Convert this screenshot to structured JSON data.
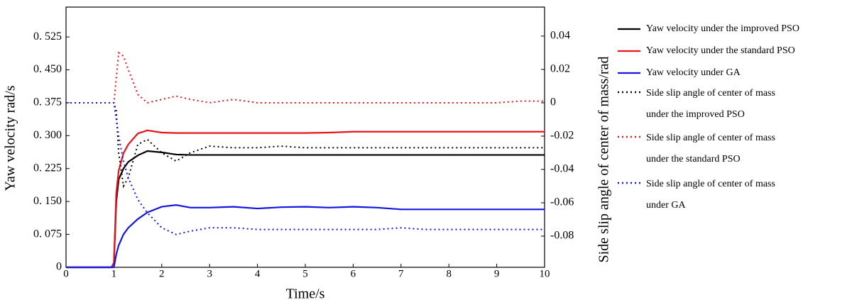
{
  "chart_data": {
    "type": "line",
    "xlabel": "Time/s",
    "ylabel": "Yaw velocity rad/s",
    "y2label": "Side slip angle of center of mass/rad",
    "x": [
      0,
      0.95,
      1.0,
      1.05,
      1.1,
      1.2,
      1.3,
      1.5,
      1.7,
      2,
      2.3,
      2.6,
      3,
      3.5,
      4,
      4.5,
      5,
      5.5,
      6,
      6.5,
      7,
      7.5,
      8,
      8.5,
      9,
      9.5,
      10
    ],
    "xlim": [
      0,
      10
    ],
    "xticks": [
      0,
      1,
      2,
      3,
      4,
      5,
      6,
      7,
      8,
      9,
      10
    ],
    "ylim": [
      0,
      0.593
    ],
    "yticks": [
      0,
      {
        "value": 0.075,
        "label": "0. 075"
      },
      {
        "value": 0.15,
        "label": "0. 150"
      },
      {
        "value": 0.225,
        "label": "0. 225"
      },
      {
        "value": 0.3,
        "label": "0. 300"
      },
      {
        "value": 0.375,
        "label": "0. 375"
      },
      {
        "value": 0.45,
        "label": "0. 450"
      },
      {
        "value": 0.525,
        "label": "0. 525"
      }
    ],
    "y2lim": [
      -0.0987,
      0.0574
    ],
    "y2ticks": [
      -0.08,
      -0.06,
      -0.04,
      -0.02,
      0,
      0.02,
      0.04
    ],
    "series": [
      {
        "name": "Yaw velocity under the improved PSO",
        "color": "#000000",
        "linestyle": "solid",
        "values": [
          0,
          0,
          0.01,
          0.15,
          0.2,
          0.225,
          0.24,
          0.255,
          0.265,
          0.262,
          0.257,
          0.256,
          0.256,
          0.256,
          0.256,
          0.256,
          0.256,
          0.256,
          0.256,
          0.256,
          0.256,
          0.256,
          0.256,
          0.256,
          0.256,
          0.256,
          0.256
        ]
      },
      {
        "name": "Yaw velocity under the standard PSO",
        "color": "#e8141c",
        "linestyle": "solid",
        "values": [
          0,
          0,
          0.01,
          0.17,
          0.22,
          0.26,
          0.28,
          0.305,
          0.312,
          0.307,
          0.306,
          0.306,
          0.306,
          0.306,
          0.306,
          0.306,
          0.306,
          0.307,
          0.309,
          0.309,
          0.309,
          0.309,
          0.309,
          0.309,
          0.309,
          0.309,
          0.309
        ]
      },
      {
        "name": "Yaw velocity under GA",
        "color": "#1515e0",
        "linestyle": "solid",
        "values": [
          0,
          0,
          0,
          0.03,
          0.05,
          0.075,
          0.09,
          0.11,
          0.125,
          0.138,
          0.142,
          0.136,
          0.136,
          0.138,
          0.134,
          0.137,
          0.138,
          0.136,
          0.138,
          0.136,
          0.132,
          0.132,
          0.132,
          0.132,
          0.132,
          0.132,
          0.132
        ]
      },
      {
        "name": "Side slip angle of center of mass under the improved PSO",
        "color": "#000000",
        "linestyle": "dotted",
        "axis": "y2",
        "values": [
          0,
          0,
          0,
          -0.005,
          -0.03,
          -0.05,
          -0.045,
          -0.025,
          -0.022,
          -0.03,
          -0.035,
          -0.03,
          -0.026,
          -0.027,
          -0.027,
          -0.026,
          -0.027,
          -0.027,
          -0.027,
          -0.027,
          -0.027,
          -0.027,
          -0.027,
          -0.027,
          -0.027,
          -0.027,
          -0.027
        ]
      },
      {
        "name": "Side slip angle of center of mass under the standard PSO",
        "color": "#e8141c",
        "linestyle": "dotted",
        "axis": "y2",
        "values": [
          0,
          0,
          0,
          0.015,
          0.03,
          0.028,
          0.02,
          0.005,
          0,
          0.002,
          0.004,
          0.002,
          0,
          0.002,
          0,
          0,
          0,
          0,
          0,
          0,
          0,
          0,
          0,
          0,
          0,
          0.001,
          0.001
        ]
      },
      {
        "name": "Side slip angle of center of mass under GA",
        "color": "#1515e0",
        "linestyle": "dotted",
        "axis": "y2",
        "values": [
          0,
          0,
          0,
          -0.01,
          -0.02,
          -0.035,
          -0.045,
          -0.058,
          -0.066,
          -0.075,
          -0.079,
          -0.077,
          -0.075,
          -0.075,
          -0.076,
          -0.076,
          -0.076,
          -0.076,
          -0.076,
          -0.076,
          -0.075,
          -0.076,
          -0.076,
          -0.076,
          -0.076,
          -0.076,
          -0.076
        ]
      }
    ]
  }
}
